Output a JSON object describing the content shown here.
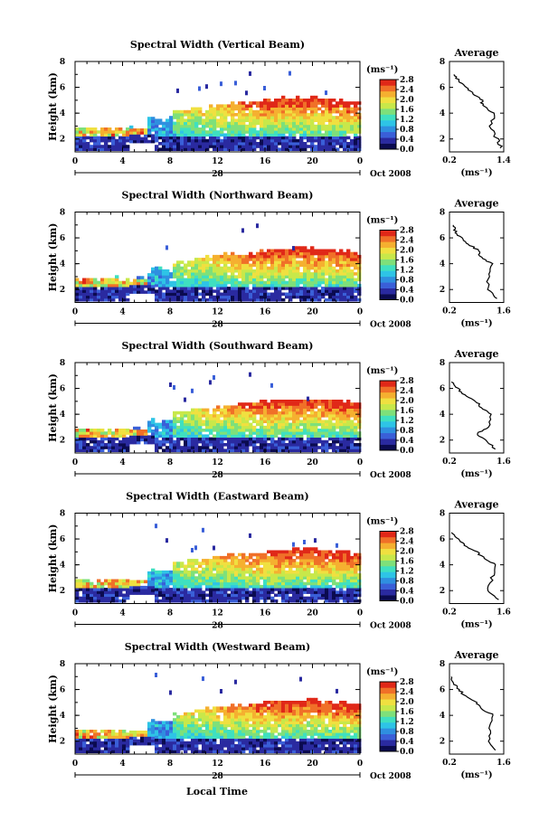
{
  "figure": {
    "xlabel": "Local Time",
    "date_label": "Oct 2008",
    "day_label": "28",
    "colorbar_unit": "(ms⁻¹)",
    "average_title": "Average",
    "average_xlabel": "(ms⁻¹)"
  },
  "chart_data": [
    {
      "type": "heatmap",
      "title": "Spectral Width (Vertical Beam)",
      "ylabel": "Height (km)",
      "xlabel": "Local Time",
      "x_ticks": [
        "0",
        "4",
        "8",
        "12",
        "16",
        "20",
        "0"
      ],
      "x_range_hours": [
        0,
        24
      ],
      "y_ticks": [
        "2",
        "4",
        "6",
        "8"
      ],
      "y_range_km": [
        1,
        8
      ],
      "colorbar_ticks": [
        "2.8",
        "2.4",
        "2.0",
        "1.6",
        "1.2",
        "0.8",
        "0.4",
        "0.0"
      ],
      "colorbar_range": [
        0.0,
        2.8
      ],
      "average_profile": {
        "type": "line",
        "title": "Average",
        "x_ticks": [
          "0.2",
          "1.4"
        ],
        "xlim": [
          0.2,
          1.4
        ],
        "y_ticks": [
          "2",
          "4",
          "6",
          "8"
        ],
        "ylim": [
          1,
          8
        ],
        "height_km": [
          1.3,
          2.0,
          3.0,
          4.0,
          4.5,
          5.0,
          5.5,
          6.0,
          6.5,
          7.0
        ],
        "width": [
          1.35,
          1.25,
          1.1,
          1.2,
          0.95,
          0.9,
          0.75,
          0.55,
          0.4,
          0.3
        ]
      }
    },
    {
      "type": "heatmap",
      "title": "Spectral Width (Northward Beam)",
      "ylabel": "Height (km)",
      "xlabel": "Local Time",
      "x_ticks": [
        "0",
        "4",
        "8",
        "12",
        "16",
        "20",
        "0"
      ],
      "x_range_hours": [
        0,
        24
      ],
      "y_ticks": [
        "2",
        "4",
        "6",
        "8"
      ],
      "y_range_km": [
        1,
        8
      ],
      "colorbar_ticks": [
        "2.8",
        "2.4",
        "2.0",
        "1.6",
        "1.2",
        "0.8",
        "0.4",
        "0.0"
      ],
      "colorbar_range": [
        0.0,
        2.8
      ],
      "average_profile": {
        "type": "line",
        "title": "Average",
        "x_ticks": [
          "0.2",
          "1.6"
        ],
        "xlim": [
          0.2,
          1.6
        ],
        "y_ticks": [
          "2",
          "4",
          "6",
          "8"
        ],
        "ylim": [
          1,
          8
        ],
        "height_km": [
          1.3,
          2.0,
          3.0,
          4.0,
          4.5,
          5.0,
          5.5,
          6.0,
          6.5,
          7.0
        ],
        "width": [
          1.4,
          1.2,
          1.2,
          1.3,
          1.0,
          0.95,
          0.7,
          0.5,
          0.35,
          0.3
        ]
      }
    },
    {
      "type": "heatmap",
      "title": "Spectral Width (Southward Beam)",
      "ylabel": "Height (km)",
      "xlabel": "Local Time",
      "x_ticks": [
        "0",
        "4",
        "8",
        "12",
        "16",
        "20",
        "0"
      ],
      "x_range_hours": [
        0,
        24
      ],
      "y_ticks": [
        "2",
        "4",
        "6",
        "8"
      ],
      "y_range_km": [
        1,
        8
      ],
      "colorbar_ticks": [
        "2.8",
        "2.4",
        "2.0",
        "1.6",
        "1.2",
        "0.8",
        "0.4",
        "0.0"
      ],
      "colorbar_range": [
        0.0,
        2.8
      ],
      "average_profile": {
        "type": "line",
        "title": "Average",
        "x_ticks": [
          "0.2",
          "1.6"
        ],
        "xlim": [
          0.2,
          1.6
        ],
        "y_ticks": [
          "2",
          "4",
          "6",
          "8"
        ],
        "ylim": [
          1,
          8
        ],
        "height_km": [
          1.3,
          2.0,
          2.5,
          3.0,
          4.0,
          4.5,
          5.0,
          5.5,
          6.0,
          6.5
        ],
        "width": [
          1.4,
          1.1,
          0.9,
          1.2,
          1.3,
          1.0,
          0.9,
          0.6,
          0.4,
          0.25
        ]
      }
    },
    {
      "type": "heatmap",
      "title": "Spectral Width (Eastward Beam)",
      "ylabel": "Height (km)",
      "xlabel": "Local Time",
      "x_ticks": [
        "0",
        "4",
        "8",
        "12",
        "16",
        "20",
        "0"
      ],
      "x_range_hours": [
        0,
        24
      ],
      "y_ticks": [
        "2",
        "4",
        "6",
        "8"
      ],
      "y_range_km": [
        1,
        8
      ],
      "colorbar_ticks": [
        "2.8",
        "2.4",
        "2.0",
        "1.6",
        "1.2",
        "0.8",
        "0.4",
        "0.0"
      ],
      "colorbar_range": [
        0.0,
        2.8
      ],
      "average_profile": {
        "type": "line",
        "title": "Average",
        "x_ticks": [
          "0.2",
          "1.6"
        ],
        "xlim": [
          0.2,
          1.6
        ],
        "y_ticks": [
          "2",
          "4",
          "6",
          "8"
        ],
        "ylim": [
          1,
          8
        ],
        "height_km": [
          1.3,
          2.0,
          3.0,
          4.0,
          4.5,
          5.0,
          5.5,
          6.0,
          6.5
        ],
        "width": [
          1.45,
          1.2,
          1.3,
          1.4,
          1.1,
          0.9,
          0.6,
          0.4,
          0.25
        ]
      }
    },
    {
      "type": "heatmap",
      "title": "Spectral Width (Westward Beam)",
      "ylabel": "Height (km)",
      "xlabel": "Local Time",
      "x_ticks": [
        "0",
        "4",
        "8",
        "12",
        "16",
        "20",
        "0"
      ],
      "x_range_hours": [
        0,
        24
      ],
      "y_ticks": [
        "2",
        "4",
        "6",
        "8"
      ],
      "y_range_km": [
        1,
        8
      ],
      "colorbar_ticks": [
        "2.8",
        "2.4",
        "2.0",
        "1.6",
        "1.2",
        "0.8",
        "0.4",
        "0.0"
      ],
      "colorbar_range": [
        0.0,
        2.8
      ],
      "average_profile": {
        "type": "line",
        "title": "Average",
        "x_ticks": [
          "0.2",
          "1.6"
        ],
        "xlim": [
          0.2,
          1.6
        ],
        "y_ticks": [
          "2",
          "4",
          "6",
          "8"
        ],
        "ylim": [
          1,
          8
        ],
        "height_km": [
          1.3,
          2.0,
          3.0,
          4.0,
          4.5,
          5.0,
          5.5,
          6.0,
          6.5,
          7.0
        ],
        "width": [
          1.4,
          1.2,
          1.25,
          1.35,
          1.0,
          0.9,
          0.6,
          0.45,
          0.3,
          0.25
        ]
      }
    }
  ],
  "colormap": [
    "#0b0b50",
    "#2a2aa0",
    "#3a5fd8",
    "#2f8fe0",
    "#2ec4e6",
    "#3fe0c0",
    "#7ee07a",
    "#c8e84a",
    "#f0e040",
    "#f5b030",
    "#f07028",
    "#e02818"
  ]
}
